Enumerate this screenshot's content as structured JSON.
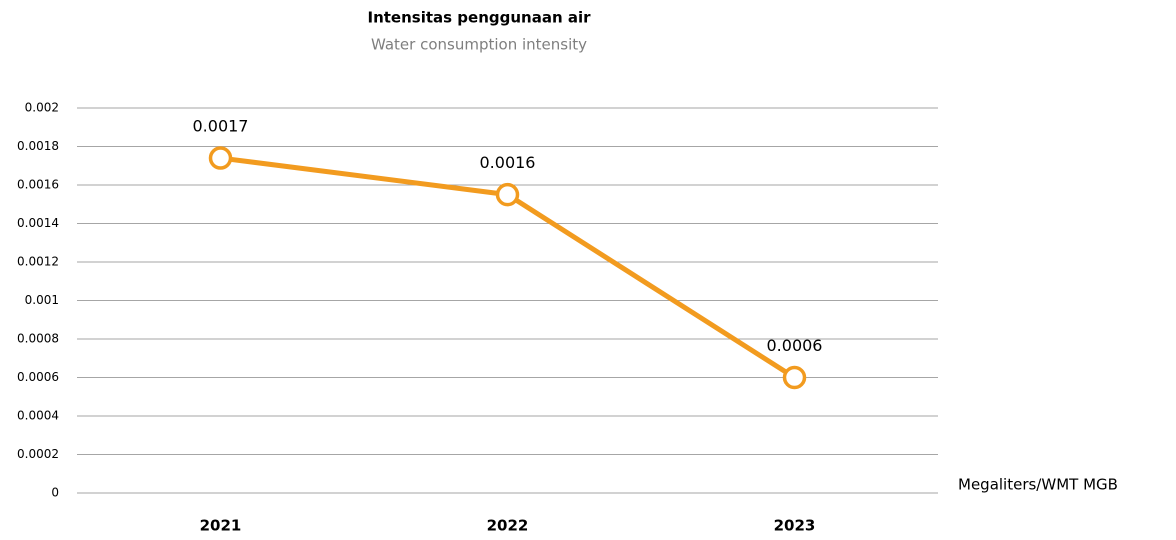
{
  "chart_data": {
    "type": "line",
    "title": "Intensitas penggunaan air",
    "subtitle": "Water consumption intensity",
    "categories": [
      "2021",
      "2022",
      "2023"
    ],
    "series": [
      {
        "name": "Megaliters/WMT MGB",
        "color": "#f29b1f",
        "values": [
          0.00174,
          0.00155,
          0.0006
        ],
        "value_labels": [
          "0.0017",
          "0.0016",
          "0.0006"
        ]
      }
    ],
    "ylim": [
      0,
      0.002
    ],
    "yticks": [
      0,
      0.0002,
      0.0004,
      0.0006,
      0.0008,
      0.001,
      0.0012,
      0.0014,
      0.0016,
      0.0018,
      0.002
    ],
    "grid": true
  }
}
